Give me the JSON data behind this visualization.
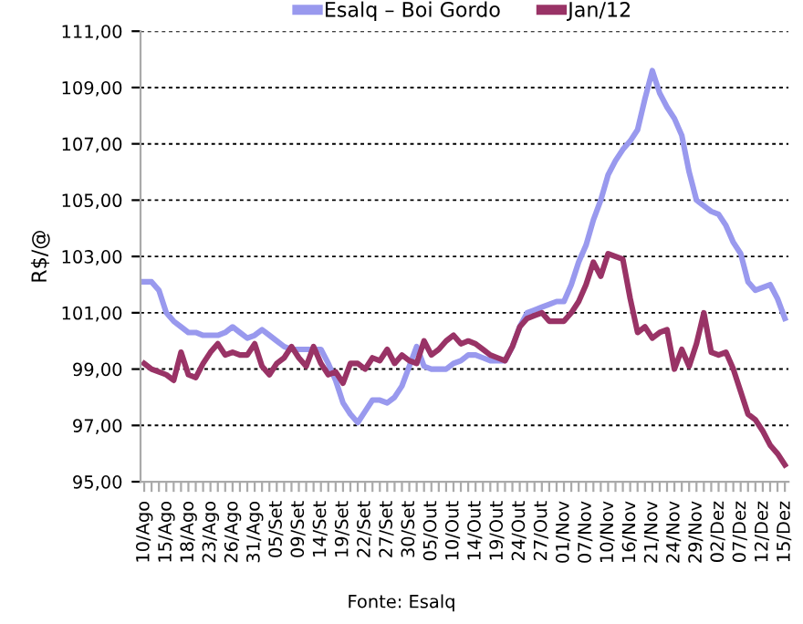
{
  "chart_data": {
    "type": "line",
    "categories": [
      "10/Ago",
      null,
      null,
      "15/Ago",
      null,
      null,
      "18/Ago",
      null,
      null,
      "23/Ago",
      null,
      null,
      "26/Ago",
      null,
      null,
      "31/Ago",
      null,
      null,
      "05/Set",
      null,
      null,
      "09/Set",
      null,
      null,
      "14/Set",
      null,
      null,
      "19/Set",
      null,
      null,
      "22/Set",
      null,
      null,
      "27/Set",
      null,
      null,
      "30/Set",
      null,
      null,
      "05/Out",
      null,
      null,
      "10/Out",
      null,
      null,
      "14/Out",
      null,
      null,
      "19/Out",
      null,
      null,
      "24/Out",
      null,
      null,
      "27/Out",
      null,
      null,
      "01/Nov",
      null,
      null,
      "07/Nov",
      null,
      null,
      "10/Nov",
      null,
      null,
      "16/Nov",
      null,
      null,
      "21/Nov",
      null,
      null,
      "24/Nov",
      null,
      null,
      "29/Nov",
      null,
      null,
      "02/Dez",
      null,
      null,
      "07/Dez",
      null,
      null,
      "12/Dez",
      null,
      null,
      "15/Dez"
    ],
    "series": [
      {
        "name": "Esalq – Boi Gordo",
        "color": "#9999ee",
        "values": [
          102.1,
          102.1,
          101.8,
          101.0,
          100.7,
          100.5,
          100.3,
          100.3,
          100.2,
          100.2,
          100.2,
          100.3,
          100.5,
          100.3,
          100.1,
          100.2,
          100.4,
          100.2,
          100.0,
          99.8,
          99.7,
          99.7,
          99.7,
          99.7,
          99.7,
          99.2,
          98.6,
          97.8,
          97.4,
          97.1,
          97.5,
          97.9,
          97.9,
          97.8,
          98.0,
          98.4,
          99.1,
          99.8,
          99.1,
          99.0,
          99.0,
          99.0,
          99.2,
          99.3,
          99.5,
          99.5,
          99.4,
          99.3,
          99.3,
          99.3,
          99.8,
          100.5,
          101.0,
          101.1,
          101.2,
          101.3,
          101.4,
          101.4,
          102.0,
          102.8,
          103.4,
          104.3,
          105.0,
          105.9,
          106.4,
          106.8,
          107.1,
          107.5,
          108.6,
          109.6,
          108.8,
          108.3,
          107.9,
          107.3,
          106.0,
          105.0,
          104.8,
          104.6,
          104.5,
          104.1,
          103.5,
          103.1,
          102.1,
          101.8,
          101.9,
          102.0,
          101.5,
          100.8
        ]
      },
      {
        "name": "Jan/12",
        "color": "#993366",
        "values": [
          99.2,
          99.0,
          98.9,
          98.8,
          98.6,
          99.6,
          98.8,
          98.7,
          99.2,
          99.6,
          99.9,
          99.5,
          99.6,
          99.5,
          99.5,
          99.9,
          99.1,
          98.8,
          99.2,
          99.4,
          99.8,
          99.4,
          99.1,
          99.8,
          99.2,
          98.8,
          98.9,
          98.5,
          99.2,
          99.2,
          99.0,
          99.4,
          99.3,
          99.7,
          99.2,
          99.5,
          99.3,
          99.2,
          100.0,
          99.5,
          99.7,
          100.0,
          100.2,
          99.9,
          100.0,
          99.9,
          99.7,
          99.5,
          99.4,
          99.3,
          99.8,
          100.5,
          100.8,
          100.9,
          101.0,
          100.7,
          100.7,
          100.7,
          101.0,
          101.4,
          102.0,
          102.8,
          102.3,
          103.1,
          103.0,
          102.9,
          101.5,
          100.3,
          100.5,
          100.1,
          100.3,
          100.4,
          99.0,
          99.7,
          99.1,
          99.9,
          101.0,
          99.6,
          99.5,
          99.6,
          99.0,
          98.2,
          97.4,
          97.2,
          96.8,
          96.3,
          96.0,
          95.6
        ]
      }
    ],
    "ylabel": "R$/@",
    "ylim": [
      95,
      111
    ],
    "yticks": [
      {
        "value": 95,
        "label": "95,00"
      },
      {
        "value": 97,
        "label": "97,00"
      },
      {
        "value": 99,
        "label": "99,00"
      },
      {
        "value": 101,
        "label": "101,00"
      },
      {
        "value": 103,
        "label": "103,00"
      },
      {
        "value": 105,
        "label": "105,00"
      },
      {
        "value": 107,
        "label": "107,00"
      },
      {
        "value": 109,
        "label": "109,00"
      },
      {
        "value": 111,
        "label": "111,00"
      }
    ],
    "grid": "y",
    "legend": "top",
    "marker": "none",
    "line_style": "solid",
    "annotations": [
      "Fonte: Esalq"
    ]
  }
}
